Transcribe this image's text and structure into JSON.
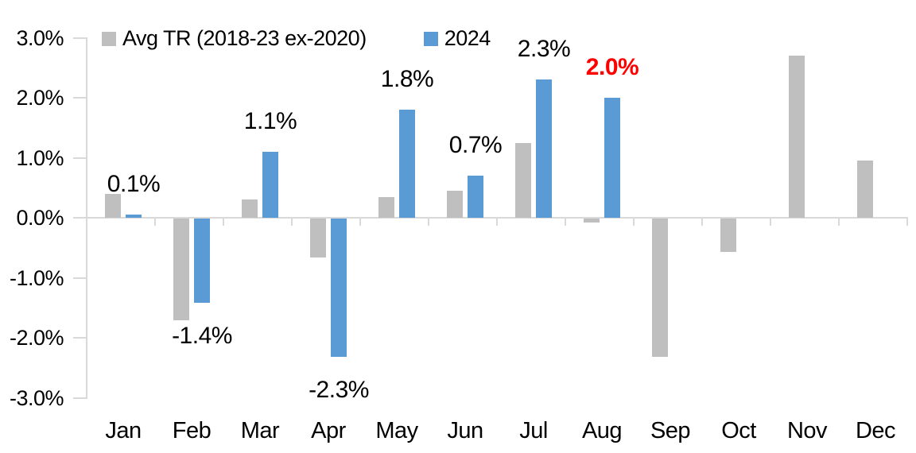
{
  "chart_data": {
    "type": "bar",
    "title": "",
    "xlabel": "",
    "ylabel": "",
    "categories": [
      "Jan",
      "Feb",
      "Mar",
      "Apr",
      "May",
      "Jun",
      "Jul",
      "Aug",
      "Sep",
      "Oct",
      "Nov",
      "Dec"
    ],
    "series": [
      {
        "name": "Avg TR (2018-23 ex-2020)",
        "color": "#bfbfbf",
        "values": [
          0.4,
          -1.7,
          0.3,
          -0.65,
          0.35,
          0.45,
          1.25,
          -0.07,
          -2.3,
          -0.55,
          2.7,
          0.95
        ]
      },
      {
        "name": "2024",
        "color": "#5b9bd5",
        "values": [
          0.05,
          -1.4,
          1.1,
          -2.3,
          1.8,
          0.7,
          2.3,
          2.0,
          null,
          null,
          null,
          null
        ]
      }
    ],
    "point_labels": [
      {
        "category": "Jan",
        "text": "0.1%",
        "color": "#000000",
        "bold": false
      },
      {
        "category": "Feb",
        "text": "-1.4%",
        "color": "#000000",
        "bold": false
      },
      {
        "category": "Mar",
        "text": "1.1%",
        "color": "#000000",
        "bold": false
      },
      {
        "category": "Apr",
        "text": "-2.3%",
        "color": "#000000",
        "bold": false
      },
      {
        "category": "May",
        "text": "1.8%",
        "color": "#000000",
        "bold": false
      },
      {
        "category": "Jun",
        "text": "0.7%",
        "color": "#000000",
        "bold": false
      },
      {
        "category": "Jul",
        "text": "2.3%",
        "color": "#000000",
        "bold": false
      },
      {
        "category": "Aug",
        "text": "2.0%",
        "color": "#ff0000",
        "bold": true
      }
    ],
    "y_ticks": [
      {
        "label": "3.0%",
        "value": 3
      },
      {
        "label": "2.0%",
        "value": 2
      },
      {
        "label": "1.0%",
        "value": 1
      },
      {
        "label": "0.0%",
        "value": 0
      },
      {
        "label": "-1.0%",
        "value": -1
      },
      {
        "label": "-2.0%",
        "value": -2
      },
      {
        "label": "-3.0%",
        "value": -3
      }
    ],
    "ylim": [
      -3.0,
      3.0
    ],
    "grid": false,
    "legend_position": "top"
  }
}
